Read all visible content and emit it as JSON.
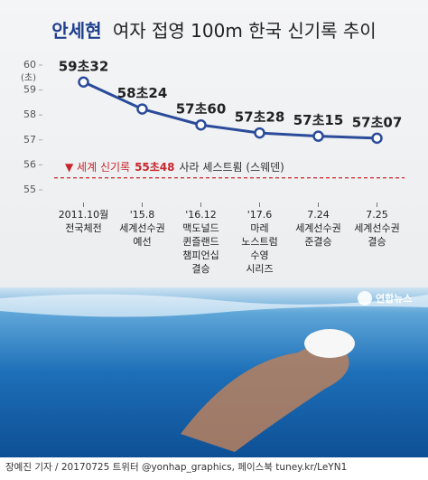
{
  "chart_data": {
    "type": "line",
    "title_parts": [
      "안세현",
      "여자 접영 100m 한국 신기록 추이"
    ],
    "y_unit": "(초)",
    "categories": [
      "2011.10월\n전국체전",
      "'15.8\n세계선수권\n예선",
      "'16.12\n맥도널드\n퀸즐랜드\n챔피언십\n결승",
      "'17.6\n마레\n노스트럼\n수영\n시리즈",
      "7.24\n세계선수권\n준결승",
      "7.25\n세계선수권\n결승"
    ],
    "values": [
      59.32,
      58.24,
      57.6,
      57.28,
      57.15,
      57.07
    ],
    "value_labels": [
      "59초32",
      "58초24",
      "57초60",
      "57초28",
      "57초15",
      "57초07"
    ],
    "color": "#2b4b9b",
    "ylim": [
      55,
      60
    ],
    "yticks": [
      55,
      56,
      57,
      58,
      59,
      60
    ],
    "world_record": {
      "value": 55.48,
      "prefix": "▼ 세계 신기록",
      "label": "55초48",
      "suffix": "사라 셰스트룀 (스웨덴)",
      "color": "#c8262c"
    },
    "logo": "연합뉴스",
    "footer": "장예진 기자 / 20170725 트위터 @yonhap_graphics, 페이스북 tuney.kr/LeYN1"
  }
}
